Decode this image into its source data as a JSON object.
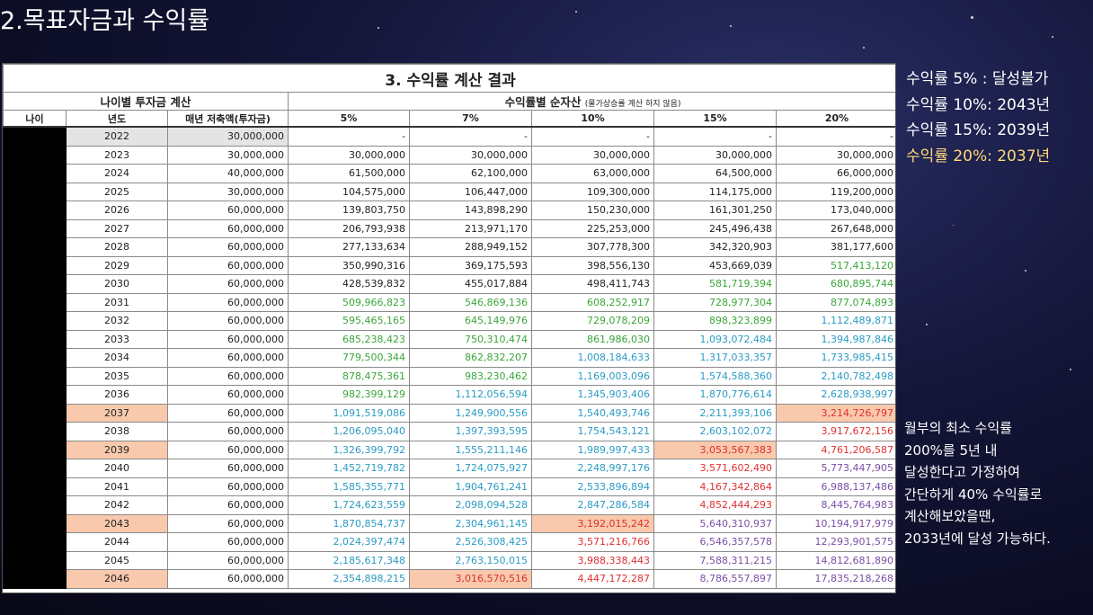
{
  "slide_title": "2.목표자금과 수익률",
  "table": {
    "title": "3. 수익률 계산 결과",
    "group_left": "나이별 투자금 계산",
    "group_right": "수익률별 순자산",
    "group_right_note": "(물가상승률 계산 하지 않음)",
    "col_headers": [
      "나이",
      "년도",
      "매년 저축액(투자금)",
      "5%",
      "7%",
      "10%",
      "15%",
      "20%"
    ],
    "rows": [
      {
        "year": "2022",
        "save": "30,000,000",
        "v": [
          "-",
          "-",
          "-",
          "-",
          "-"
        ],
        "c": [
          "k",
          "k",
          "k",
          "k",
          "k"
        ],
        "yh": "grey",
        "hl": []
      },
      {
        "year": "2023",
        "save": "30,000,000",
        "v": [
          "30,000,000",
          "30,000,000",
          "30,000,000",
          "30,000,000",
          "30,000,000"
        ],
        "c": [
          "k",
          "k",
          "k",
          "k",
          "k"
        ],
        "yh": "",
        "hl": []
      },
      {
        "year": "2024",
        "save": "40,000,000",
        "v": [
          "61,500,000",
          "62,100,000",
          "63,000,000",
          "64,500,000",
          "66,000,000"
        ],
        "c": [
          "k",
          "k",
          "k",
          "k",
          "k"
        ],
        "yh": "",
        "hl": []
      },
      {
        "year": "2025",
        "save": "30,000,000",
        "v": [
          "104,575,000",
          "106,447,000",
          "109,300,000",
          "114,175,000",
          "119,200,000"
        ],
        "c": [
          "k",
          "k",
          "k",
          "k",
          "k"
        ],
        "yh": "",
        "hl": []
      },
      {
        "year": "2026",
        "save": "60,000,000",
        "v": [
          "139,803,750",
          "143,898,290",
          "150,230,000",
          "161,301,250",
          "173,040,000"
        ],
        "c": [
          "k",
          "k",
          "k",
          "k",
          "k"
        ],
        "yh": "",
        "hl": []
      },
      {
        "year": "2027",
        "save": "60,000,000",
        "v": [
          "206,793,938",
          "213,971,170",
          "225,253,000",
          "245,496,438",
          "267,648,000"
        ],
        "c": [
          "k",
          "k",
          "k",
          "k",
          "k"
        ],
        "yh": "",
        "hl": []
      },
      {
        "year": "2028",
        "save": "60,000,000",
        "v": [
          "277,133,634",
          "288,949,152",
          "307,778,300",
          "342,320,903",
          "381,177,600"
        ],
        "c": [
          "k",
          "k",
          "k",
          "k",
          "k"
        ],
        "yh": "",
        "hl": []
      },
      {
        "year": "2029",
        "save": "60,000,000",
        "v": [
          "350,990,316",
          "369,175,593",
          "398,556,130",
          "453,669,039",
          "517,413,120"
        ],
        "c": [
          "k",
          "k",
          "k",
          "k",
          "g"
        ],
        "yh": "",
        "hl": []
      },
      {
        "year": "2030",
        "save": "60,000,000",
        "v": [
          "428,539,832",
          "455,017,884",
          "498,411,743",
          "581,719,394",
          "680,895,744"
        ],
        "c": [
          "k",
          "k",
          "k",
          "g",
          "g"
        ],
        "yh": "",
        "hl": []
      },
      {
        "year": "2031",
        "save": "60,000,000",
        "v": [
          "509,966,823",
          "546,869,136",
          "608,252,917",
          "728,977,304",
          "877,074,893"
        ],
        "c": [
          "g",
          "g",
          "g",
          "g",
          "g"
        ],
        "yh": "",
        "hl": []
      },
      {
        "year": "2032",
        "save": "60,000,000",
        "v": [
          "595,465,165",
          "645,149,976",
          "729,078,209",
          "898,323,899",
          "1,112,489,871"
        ],
        "c": [
          "g",
          "g",
          "g",
          "g",
          "b"
        ],
        "yh": "",
        "hl": []
      },
      {
        "year": "2033",
        "save": "60,000,000",
        "v": [
          "685,238,423",
          "750,310,474",
          "861,986,030",
          "1,093,072,484",
          "1,394,987,846"
        ],
        "c": [
          "g",
          "g",
          "g",
          "b",
          "b"
        ],
        "yh": "",
        "hl": []
      },
      {
        "year": "2034",
        "save": "60,000,000",
        "v": [
          "779,500,344",
          "862,832,207",
          "1,008,184,633",
          "1,317,033,357",
          "1,733,985,415"
        ],
        "c": [
          "g",
          "g",
          "b",
          "b",
          "b"
        ],
        "yh": "",
        "hl": []
      },
      {
        "year": "2035",
        "save": "60,000,000",
        "v": [
          "878,475,361",
          "983,230,462",
          "1,169,003,096",
          "1,574,588,360",
          "2,140,782,498"
        ],
        "c": [
          "g",
          "g",
          "b",
          "b",
          "b"
        ],
        "yh": "",
        "hl": []
      },
      {
        "year": "2036",
        "save": "60,000,000",
        "v": [
          "982,399,129",
          "1,112,056,594",
          "1,345,903,406",
          "1,870,776,614",
          "2,628,938,997"
        ],
        "c": [
          "g",
          "b",
          "b",
          "b",
          "b"
        ],
        "yh": "",
        "hl": []
      },
      {
        "year": "2037",
        "save": "60,000,000",
        "v": [
          "1,091,519,086",
          "1,249,900,556",
          "1,540,493,746",
          "2,211,393,106",
          "3,214,726,797"
        ],
        "c": [
          "b",
          "b",
          "b",
          "b",
          "r"
        ],
        "yh": "hl",
        "hl": [
          4
        ]
      },
      {
        "year": "2038",
        "save": "60,000,000",
        "v": [
          "1,206,095,040",
          "1,397,393,595",
          "1,754,543,121",
          "2,603,102,072",
          "3,917,672,156"
        ],
        "c": [
          "b",
          "b",
          "b",
          "b",
          "r"
        ],
        "yh": "",
        "hl": []
      },
      {
        "year": "2039",
        "save": "60,000,000",
        "v": [
          "1,326,399,792",
          "1,555,211,146",
          "1,989,997,433",
          "3,053,567,383",
          "4,761,206,587"
        ],
        "c": [
          "b",
          "b",
          "b",
          "r",
          "r"
        ],
        "yh": "hl",
        "hl": [
          3
        ]
      },
      {
        "year": "2040",
        "save": "60,000,000",
        "v": [
          "1,452,719,782",
          "1,724,075,927",
          "2,248,997,176",
          "3,571,602,490",
          "5,773,447,905"
        ],
        "c": [
          "b",
          "b",
          "b",
          "r",
          "p"
        ],
        "yh": "",
        "hl": []
      },
      {
        "year": "2041",
        "save": "60,000,000",
        "v": [
          "1,585,355,771",
          "1,904,761,241",
          "2,533,896,894",
          "4,167,342,864",
          "6,988,137,486"
        ],
        "c": [
          "b",
          "b",
          "b",
          "r",
          "p"
        ],
        "yh": "",
        "hl": []
      },
      {
        "year": "2042",
        "save": "60,000,000",
        "v": [
          "1,724,623,559",
          "2,098,094,528",
          "2,847,286,584",
          "4,852,444,293",
          "8,445,764,983"
        ],
        "c": [
          "b",
          "b",
          "b",
          "r",
          "p"
        ],
        "yh": "",
        "hl": []
      },
      {
        "year": "2043",
        "save": "60,000,000",
        "v": [
          "1,870,854,737",
          "2,304,961,145",
          "3,192,015,242",
          "5,640,310,937",
          "10,194,917,979"
        ],
        "c": [
          "b",
          "b",
          "r",
          "p",
          "p"
        ],
        "yh": "hl",
        "hl": [
          2
        ]
      },
      {
        "year": "2044",
        "save": "60,000,000",
        "v": [
          "2,024,397,474",
          "2,526,308,425",
          "3,571,216,766",
          "6,546,357,578",
          "12,293,901,575"
        ],
        "c": [
          "b",
          "b",
          "r",
          "p",
          "p"
        ],
        "yh": "",
        "hl": []
      },
      {
        "year": "2045",
        "save": "60,000,000",
        "v": [
          "2,185,617,348",
          "2,763,150,015",
          "3,988,338,443",
          "7,588,311,215",
          "14,812,681,890"
        ],
        "c": [
          "b",
          "b",
          "r",
          "p",
          "p"
        ],
        "yh": "",
        "hl": []
      },
      {
        "year": "2046",
        "save": "60,000,000",
        "v": [
          "2,354,898,215",
          "3,016,570,516",
          "4,447,172,287",
          "8,786,557,897",
          "17,835,218,268"
        ],
        "c": [
          "b",
          "r",
          "r",
          "p",
          "p"
        ],
        "yh": "hl",
        "hl": [
          1
        ]
      }
    ]
  },
  "summary_lines": [
    {
      "text": "수익률 5% : 달성불가",
      "highlight": false
    },
    {
      "text": "수익률 10%: 2043년",
      "highlight": false
    },
    {
      "text": "수익률 15%: 2039년",
      "highlight": false
    },
    {
      "text": "수익률 20%: 2037년",
      "highlight": true
    }
  ],
  "note_lines": [
    "월부의 최소 수익률",
    "200%를 5년 내",
    "달성한다고 가정하여",
    "간단하게 40% 수익률로",
    "계산해보았을땐,",
    "2033년에 달성 가능하다."
  ],
  "colors": {
    "green": "#3aa63a",
    "blue": "#2a9bc4",
    "red": "#e03030",
    "purple": "#7a4fa6",
    "highlight_cell": "#f8c9ad",
    "gold_text": "#ffd978"
  }
}
